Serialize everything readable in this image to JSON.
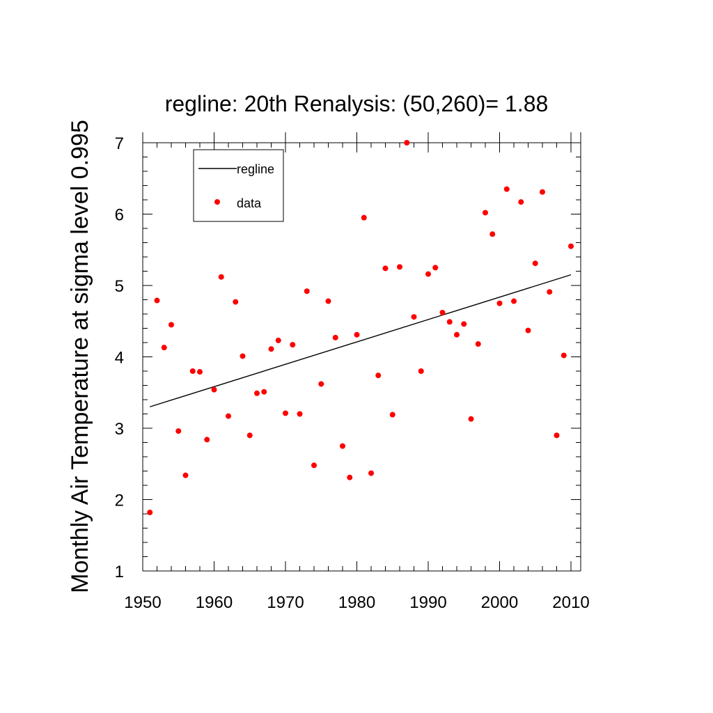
{
  "chart_data": {
    "type": "scatter",
    "title": "regline: 20th Renalysis: (50,260)= 1.88",
    "xlabel": "",
    "ylabel": "Monthly Air Temperature at sigma level 0.995",
    "xlim": [
      1950,
      2010
    ],
    "ylim": [
      1,
      7
    ],
    "x_major_ticks": [
      1950,
      1960,
      1970,
      1980,
      1990,
      2000,
      2010
    ],
    "y_major_ticks": [
      1,
      2,
      3,
      4,
      5,
      6,
      7
    ],
    "x_tick_labels": [
      "1950",
      "1960",
      "1970",
      "1980",
      "1990",
      "2000",
      "2010"
    ],
    "y_tick_labels": [
      "1",
      "2",
      "3",
      "4",
      "5",
      "6",
      "7"
    ],
    "grid": false,
    "legend_position": "top-left",
    "legend": [
      "regline",
      "data"
    ],
    "series": [
      {
        "name": "data",
        "kind": "scatter",
        "color": "#ff0000",
        "points": [
          [
            1951,
            1.82
          ],
          [
            1952,
            4.79
          ],
          [
            1953,
            4.13
          ],
          [
            1954,
            4.45
          ],
          [
            1955,
            2.96
          ],
          [
            1956,
            2.34
          ],
          [
            1957,
            3.8
          ],
          [
            1958,
            3.79
          ],
          [
            1959,
            2.84
          ],
          [
            1960,
            3.54
          ],
          [
            1961,
            5.12
          ],
          [
            1962,
            3.17
          ],
          [
            1963,
            4.77
          ],
          [
            1964,
            4.01
          ],
          [
            1965,
            2.9
          ],
          [
            1966,
            3.49
          ],
          [
            1967,
            3.51
          ],
          [
            1968,
            4.11
          ],
          [
            1969,
            4.23
          ],
          [
            1970,
            3.21
          ],
          [
            1971,
            4.17
          ],
          [
            1972,
            3.2
          ],
          [
            1973,
            4.92
          ],
          [
            1974,
            2.48
          ],
          [
            1975,
            3.62
          ],
          [
            1976,
            4.78
          ],
          [
            1977,
            4.27
          ],
          [
            1978,
            2.75
          ],
          [
            1979,
            2.31
          ],
          [
            1980,
            4.31
          ],
          [
            1981,
            5.95
          ],
          [
            1982,
            2.37
          ],
          [
            1983,
            3.74
          ],
          [
            1984,
            5.24
          ],
          [
            1985,
            3.19
          ],
          [
            1986,
            5.26
          ],
          [
            1987,
            7.0
          ],
          [
            1988,
            4.56
          ],
          [
            1989,
            3.8
          ],
          [
            1990,
            5.16
          ],
          [
            1991,
            5.25
          ],
          [
            1992,
            4.62
          ],
          [
            1993,
            4.49
          ],
          [
            1994,
            4.31
          ],
          [
            1995,
            4.46
          ],
          [
            1996,
            3.13
          ],
          [
            1997,
            4.18
          ],
          [
            1998,
            6.02
          ],
          [
            1999,
            5.72
          ],
          [
            2000,
            4.75
          ],
          [
            2001,
            6.35
          ],
          [
            2002,
            4.78
          ],
          [
            2003,
            6.17
          ],
          [
            2004,
            4.37
          ],
          [
            2005,
            5.31
          ],
          [
            2006,
            6.31
          ],
          [
            2007,
            4.91
          ],
          [
            2008,
            2.9
          ],
          [
            2009,
            4.02
          ],
          [
            2010,
            5.55
          ]
        ]
      },
      {
        "name": "regline",
        "kind": "line",
        "color": "#000000",
        "points": [
          [
            1951,
            3.3
          ],
          [
            2010,
            5.15
          ]
        ]
      }
    ]
  }
}
